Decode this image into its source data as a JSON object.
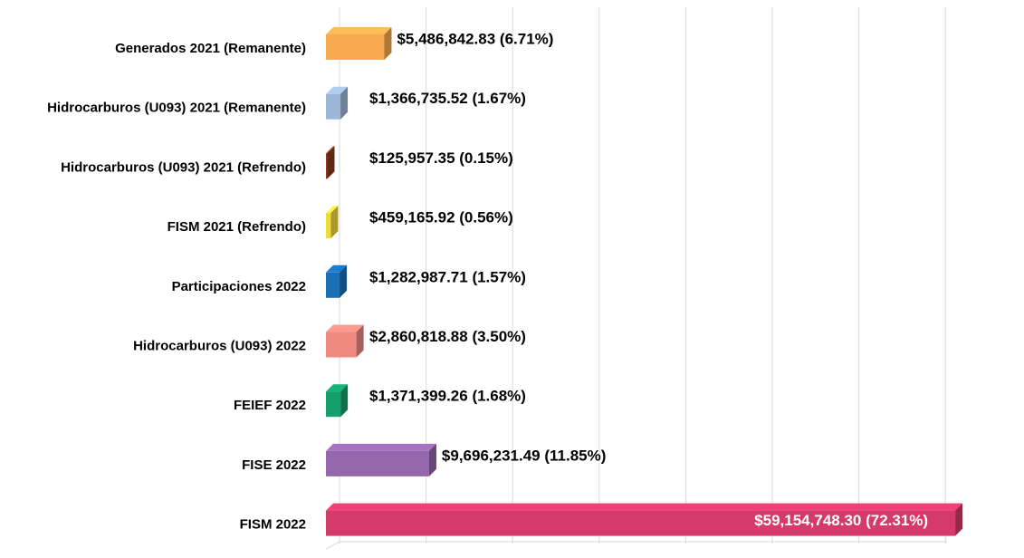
{
  "chart_data": {
    "type": "bar",
    "orientation": "horizontal",
    "categories": [
      "Generados 2021 (Remanente)",
      "Hidrocarburos (U093) 2021 (Remanente)",
      "Hidrocarburos (U093) 2021 (Refrendo)",
      "FISM 2021 (Refrendo)",
      "Participaciones 2022",
      "Hidrocarburos (U093) 2022",
      "FEIEF 2022",
      "FISE 2022",
      "FISM 2022"
    ],
    "values": [
      5486842.83,
      1366735.52,
      125957.35,
      459165.92,
      1282987.71,
      2860818.88,
      1371399.26,
      9696231.49,
      59154748.3
    ],
    "value_labels": [
      "$5,486,842.83  (6.71%)",
      "$1,366,735.52  (1.67%)",
      "$125,957.35  (0.15%)",
      "$459,165.92  (0.56%)",
      "$1,282,987.71  (1.57%)",
      "$2,860,818.88  (3.50%)",
      "$1,371,399.26  (1.68%)",
      "$9,696,231.49  (11.85%)",
      "$59,154,748.30  (72.31%)"
    ],
    "colors": [
      "#f9a94f",
      "#9db7d8",
      "#8b3a1c",
      "#f0da3c",
      "#1a6fb5",
      "#ee8a80",
      "#14a06a",
      "#9466ac",
      "#d43a6a"
    ],
    "xlim": [
      0,
      60000000
    ],
    "grid": true
  }
}
